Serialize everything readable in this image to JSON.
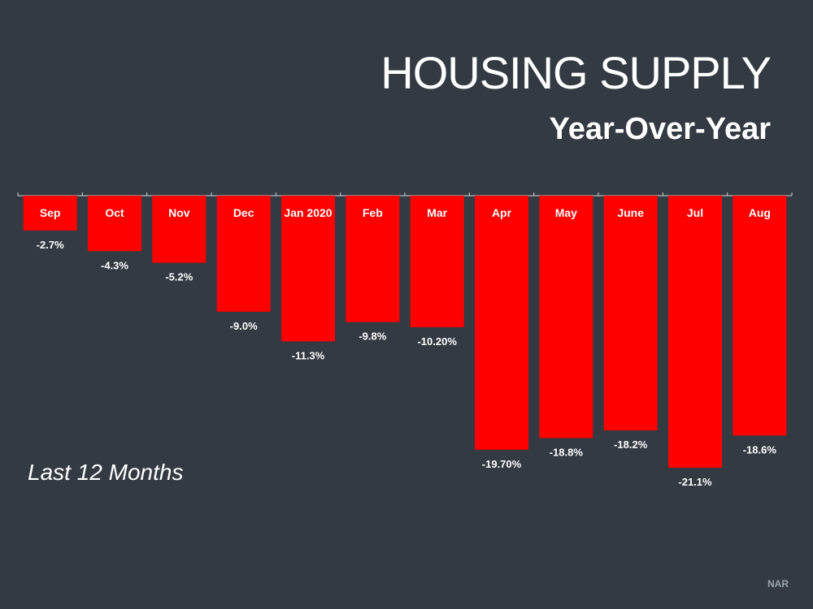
{
  "header": {
    "title": "HOUSING SUPPLY",
    "subtitle": "Year-Over-Year"
  },
  "caption": "Last 12 Months",
  "source": "NAR",
  "colors": {
    "background": "#333a42",
    "bar": "#ff0000",
    "text": "#ffffff"
  },
  "chart_data": {
    "type": "bar",
    "orientation": "vertical-negative",
    "title": "HOUSING SUPPLY",
    "subtitle": "Year-Over-Year",
    "categories": [
      "Sep",
      "Oct",
      "Nov",
      "Dec",
      "Jan 2020",
      "Feb",
      "Mar",
      "Apr",
      "May",
      "June",
      "Jul",
      "Aug"
    ],
    "values": [
      -2.7,
      -4.3,
      -5.2,
      -9.0,
      -11.3,
      -9.8,
      -10.2,
      -19.7,
      -18.8,
      -18.2,
      -21.1,
      -18.6
    ],
    "labels": [
      "-2.7%",
      "-4.3%",
      "-5.2%",
      "-9.0%",
      "-11.3%",
      "-9.8%",
      "-10.20%",
      "-19.70%",
      "-18.8%",
      "-18.2%",
      "-21.1%",
      "-18.6%"
    ],
    "ylim": [
      -21.1,
      0
    ],
    "grid": false,
    "legend": "none"
  }
}
